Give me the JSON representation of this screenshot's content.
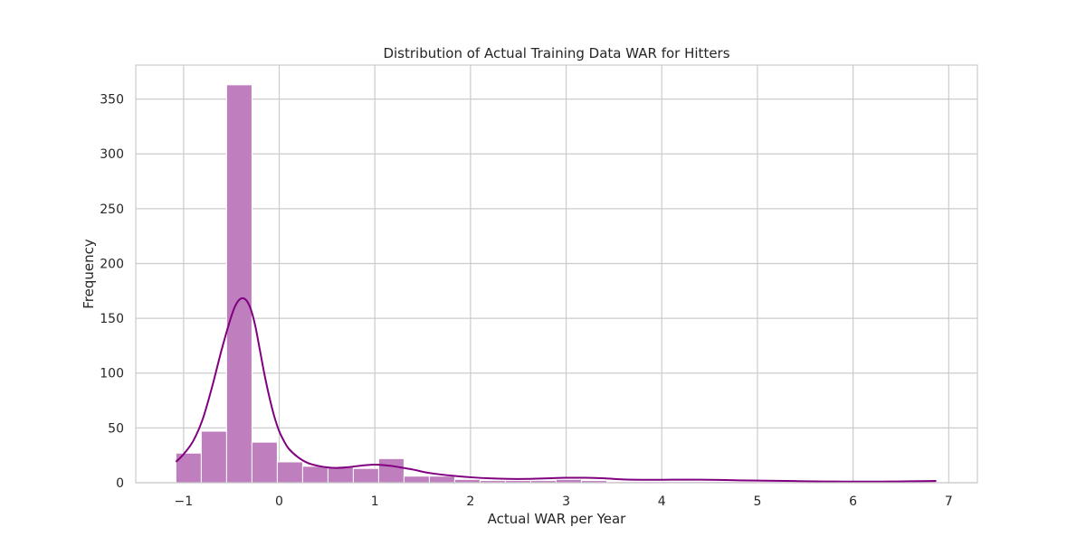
{
  "chart_data": {
    "type": "bar",
    "title": "Distribution of Actual Training Data WAR for Hitters",
    "xlabel": "Actual WAR per Year",
    "ylabel": "Frequency",
    "xlim": [
      -1.5,
      7.3
    ],
    "ylim": [
      0,
      381
    ],
    "xticks": [
      -1,
      0,
      1,
      2,
      3,
      4,
      5,
      6,
      7
    ],
    "xtick_labels": [
      "−1",
      "0",
      "1",
      "2",
      "3",
      "4",
      "5",
      "6",
      "7"
    ],
    "yticks": [
      0,
      50,
      100,
      150,
      200,
      250,
      300,
      350
    ],
    "ytick_labels": [
      "0",
      "50",
      "100",
      "150",
      "200",
      "250",
      "300",
      "350"
    ],
    "grid": true,
    "bar_color": "#bf7fbf",
    "kde_color": "#800080",
    "bins": [
      {
        "x0": -1.08,
        "x1": -0.815,
        "count": 27
      },
      {
        "x0": -0.815,
        "x1": -0.55,
        "count": 47
      },
      {
        "x0": -0.55,
        "x1": -0.285,
        "count": 363
      },
      {
        "x0": -0.285,
        "x1": -0.02,
        "count": 37
      },
      {
        "x0": -0.02,
        "x1": 0.245,
        "count": 19
      },
      {
        "x0": 0.245,
        "x1": 0.51,
        "count": 15
      },
      {
        "x0": 0.51,
        "x1": 0.775,
        "count": 14
      },
      {
        "x0": 0.775,
        "x1": 1.04,
        "count": 13
      },
      {
        "x0": 1.04,
        "x1": 1.305,
        "count": 22
      },
      {
        "x0": 1.305,
        "x1": 1.57,
        "count": 6
      },
      {
        "x0": 1.57,
        "x1": 1.835,
        "count": 6
      },
      {
        "x0": 1.835,
        "x1": 2.1,
        "count": 3
      },
      {
        "x0": 2.1,
        "x1": 2.365,
        "count": 2
      },
      {
        "x0": 2.365,
        "x1": 2.63,
        "count": 2
      },
      {
        "x0": 2.63,
        "x1": 2.895,
        "count": 2
      },
      {
        "x0": 2.895,
        "x1": 3.16,
        "count": 3
      },
      {
        "x0": 3.16,
        "x1": 3.425,
        "count": 2
      },
      {
        "x0": 3.425,
        "x1": 3.69,
        "count": 1
      },
      {
        "x0": 3.69,
        "x1": 3.955,
        "count": 1
      },
      {
        "x0": 3.955,
        "x1": 4.22,
        "count": 1
      },
      {
        "x0": 4.22,
        "x1": 4.485,
        "count": 1
      },
      {
        "x0": 4.485,
        "x1": 4.75,
        "count": 1
      },
      {
        "x0": 4.75,
        "x1": 5.015,
        "count": 1
      },
      {
        "x0": 5.015,
        "x1": 5.28,
        "count": 1
      },
      {
        "x0": 5.28,
        "x1": 5.545,
        "count": 1
      },
      {
        "x0": 5.545,
        "x1": 5.81,
        "count": 0
      },
      {
        "x0": 5.81,
        "x1": 6.075,
        "count": 0
      },
      {
        "x0": 6.075,
        "x1": 6.34,
        "count": 0
      },
      {
        "x0": 6.34,
        "x1": 6.605,
        "count": 0
      },
      {
        "x0": 6.605,
        "x1": 6.87,
        "count": 2
      }
    ],
    "kde": {
      "x": [
        -1.08,
        -1.0,
        -0.9,
        -0.8,
        -0.7,
        -0.6,
        -0.5,
        -0.45,
        -0.4,
        -0.35,
        -0.3,
        -0.25,
        -0.2,
        -0.15,
        -0.1,
        -0.05,
        0.0,
        0.05,
        0.1,
        0.2,
        0.3,
        0.4,
        0.5,
        0.6,
        0.7,
        0.8,
        0.9,
        1.0,
        1.1,
        1.2,
        1.3,
        1.4,
        1.5,
        1.6,
        1.8,
        2.0,
        2.2,
        2.4,
        2.6,
        2.8,
        3.0,
        3.2,
        3.4,
        3.6,
        3.8,
        4.0,
        4.2,
        4.4,
        4.6,
        4.8,
        5.0,
        5.2,
        5.4,
        5.6,
        5.8,
        6.0,
        6.2,
        6.4,
        6.6,
        6.87
      ],
      "y": [
        19,
        26,
        38,
        58,
        88,
        122,
        152,
        163,
        168,
        167,
        159,
        143,
        120,
        97,
        77,
        60,
        47,
        38,
        31,
        23,
        18,
        15.5,
        14,
        13.5,
        14,
        15,
        16,
        16.5,
        16,
        15,
        13.5,
        12,
        10,
        8.5,
        6.5,
        5,
        4,
        3.5,
        3.5,
        4,
        4.5,
        4.5,
        4,
        3,
        2.7,
        2.7,
        2.8,
        2.8,
        2.6,
        2.2,
        2,
        1.8,
        1.5,
        1.2,
        1.1,
        1,
        1,
        1.1,
        1.3,
        1.6
      ]
    }
  }
}
